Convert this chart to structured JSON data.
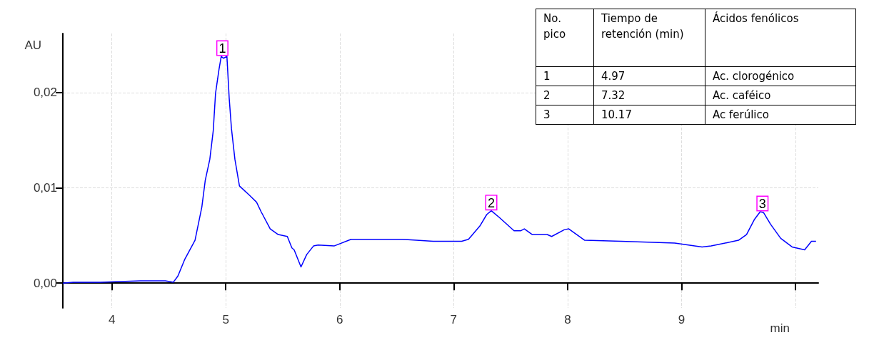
{
  "chart_data": {
    "type": "line",
    "xlabel": "min",
    "ylabel": "AU",
    "xlim": [
      3.57,
      10.2
    ],
    "ylim": [
      -0.0026,
      0.0262
    ],
    "xticks": [
      4,
      5,
      6,
      7,
      8,
      9,
      {
        "value": 10,
        "label": null
      }
    ],
    "yticks": [
      {
        "value": 0,
        "label": "0,00"
      },
      {
        "value": 0.01,
        "label": "0,01"
      },
      {
        "value": 0.02,
        "label": "0,02"
      }
    ],
    "grid": true,
    "marker": "none",
    "line_style": "solid",
    "series": [
      {
        "color": "#0000ff",
        "x": [
          3.57,
          3.66,
          3.9,
          4.25,
          4.47,
          4.54,
          4.58,
          4.64,
          4.73,
          4.79,
          4.82,
          4.86,
          4.89,
          4.91,
          4.94,
          4.96,
          4.98,
          5.01,
          5.03,
          5.05,
          5.08,
          5.12,
          5.21,
          5.27,
          5.31,
          5.39,
          5.46,
          5.54,
          5.58,
          5.6,
          5.66,
          5.71,
          5.77,
          5.81,
          5.95,
          6.1,
          6.55,
          6.82,
          7.07,
          7.13,
          7.23,
          7.29,
          7.33,
          7.4,
          7.53,
          7.59,
          7.62,
          7.69,
          7.82,
          7.86,
          7.97,
          8.01,
          8.15,
          8.47,
          8.94,
          9.18,
          9.26,
          9.5,
          9.57,
          9.64,
          9.69,
          9.72,
          9.78,
          9.87,
          9.97,
          10.08,
          10.14,
          10.18
        ],
        "values": [
          0,
          0.0001,
          0.0001,
          0.00025,
          0.00025,
          0.0001,
          0.00075,
          0.0025,
          0.0045,
          0.008,
          0.0108,
          0.013,
          0.016,
          0.0199,
          0.0224,
          0.0238,
          0.0236,
          0.0238,
          0.0194,
          0.0162,
          0.013,
          0.0102,
          0.0092,
          0.0085,
          0.0075,
          0.0057,
          0.0051,
          0.0049,
          0.0037,
          0.0035,
          0.0017,
          0.003,
          0.0039,
          0.004,
          0.0039,
          0.0046,
          0.0046,
          0.0044,
          0.0044,
          0.0046,
          0.006,
          0.0072,
          0.0076,
          0.0069,
          0.0055,
          0.0055,
          0.0057,
          0.0051,
          0.0051,
          0.0049,
          0.0056,
          0.0057,
          0.0045,
          0.0044,
          0.0042,
          0.0038,
          0.0039,
          0.0045,
          0.0051,
          0.0067,
          0.0075,
          0.0074,
          0.0062,
          0.0047,
          0.0038,
          0.0035,
          0.0044,
          0.0044
        ]
      }
    ],
    "annotations": [
      {
        "text": "1",
        "x": 4.97,
        "y": 0.0238
      },
      {
        "text": "2",
        "x": 7.33,
        "y": 0.0076
      },
      {
        "text": "3",
        "x": 9.71,
        "y": 0.0075
      },
      "No. pico",
      "Tiempo de retención (min)",
      "Ácidos fenólicos",
      "1",
      "4.97",
      "Ac. clorogénico",
      "2",
      "7.32",
      "Ac. caféico",
      "3",
      "10.17",
      "Ac ferúlico"
    ]
  }
}
